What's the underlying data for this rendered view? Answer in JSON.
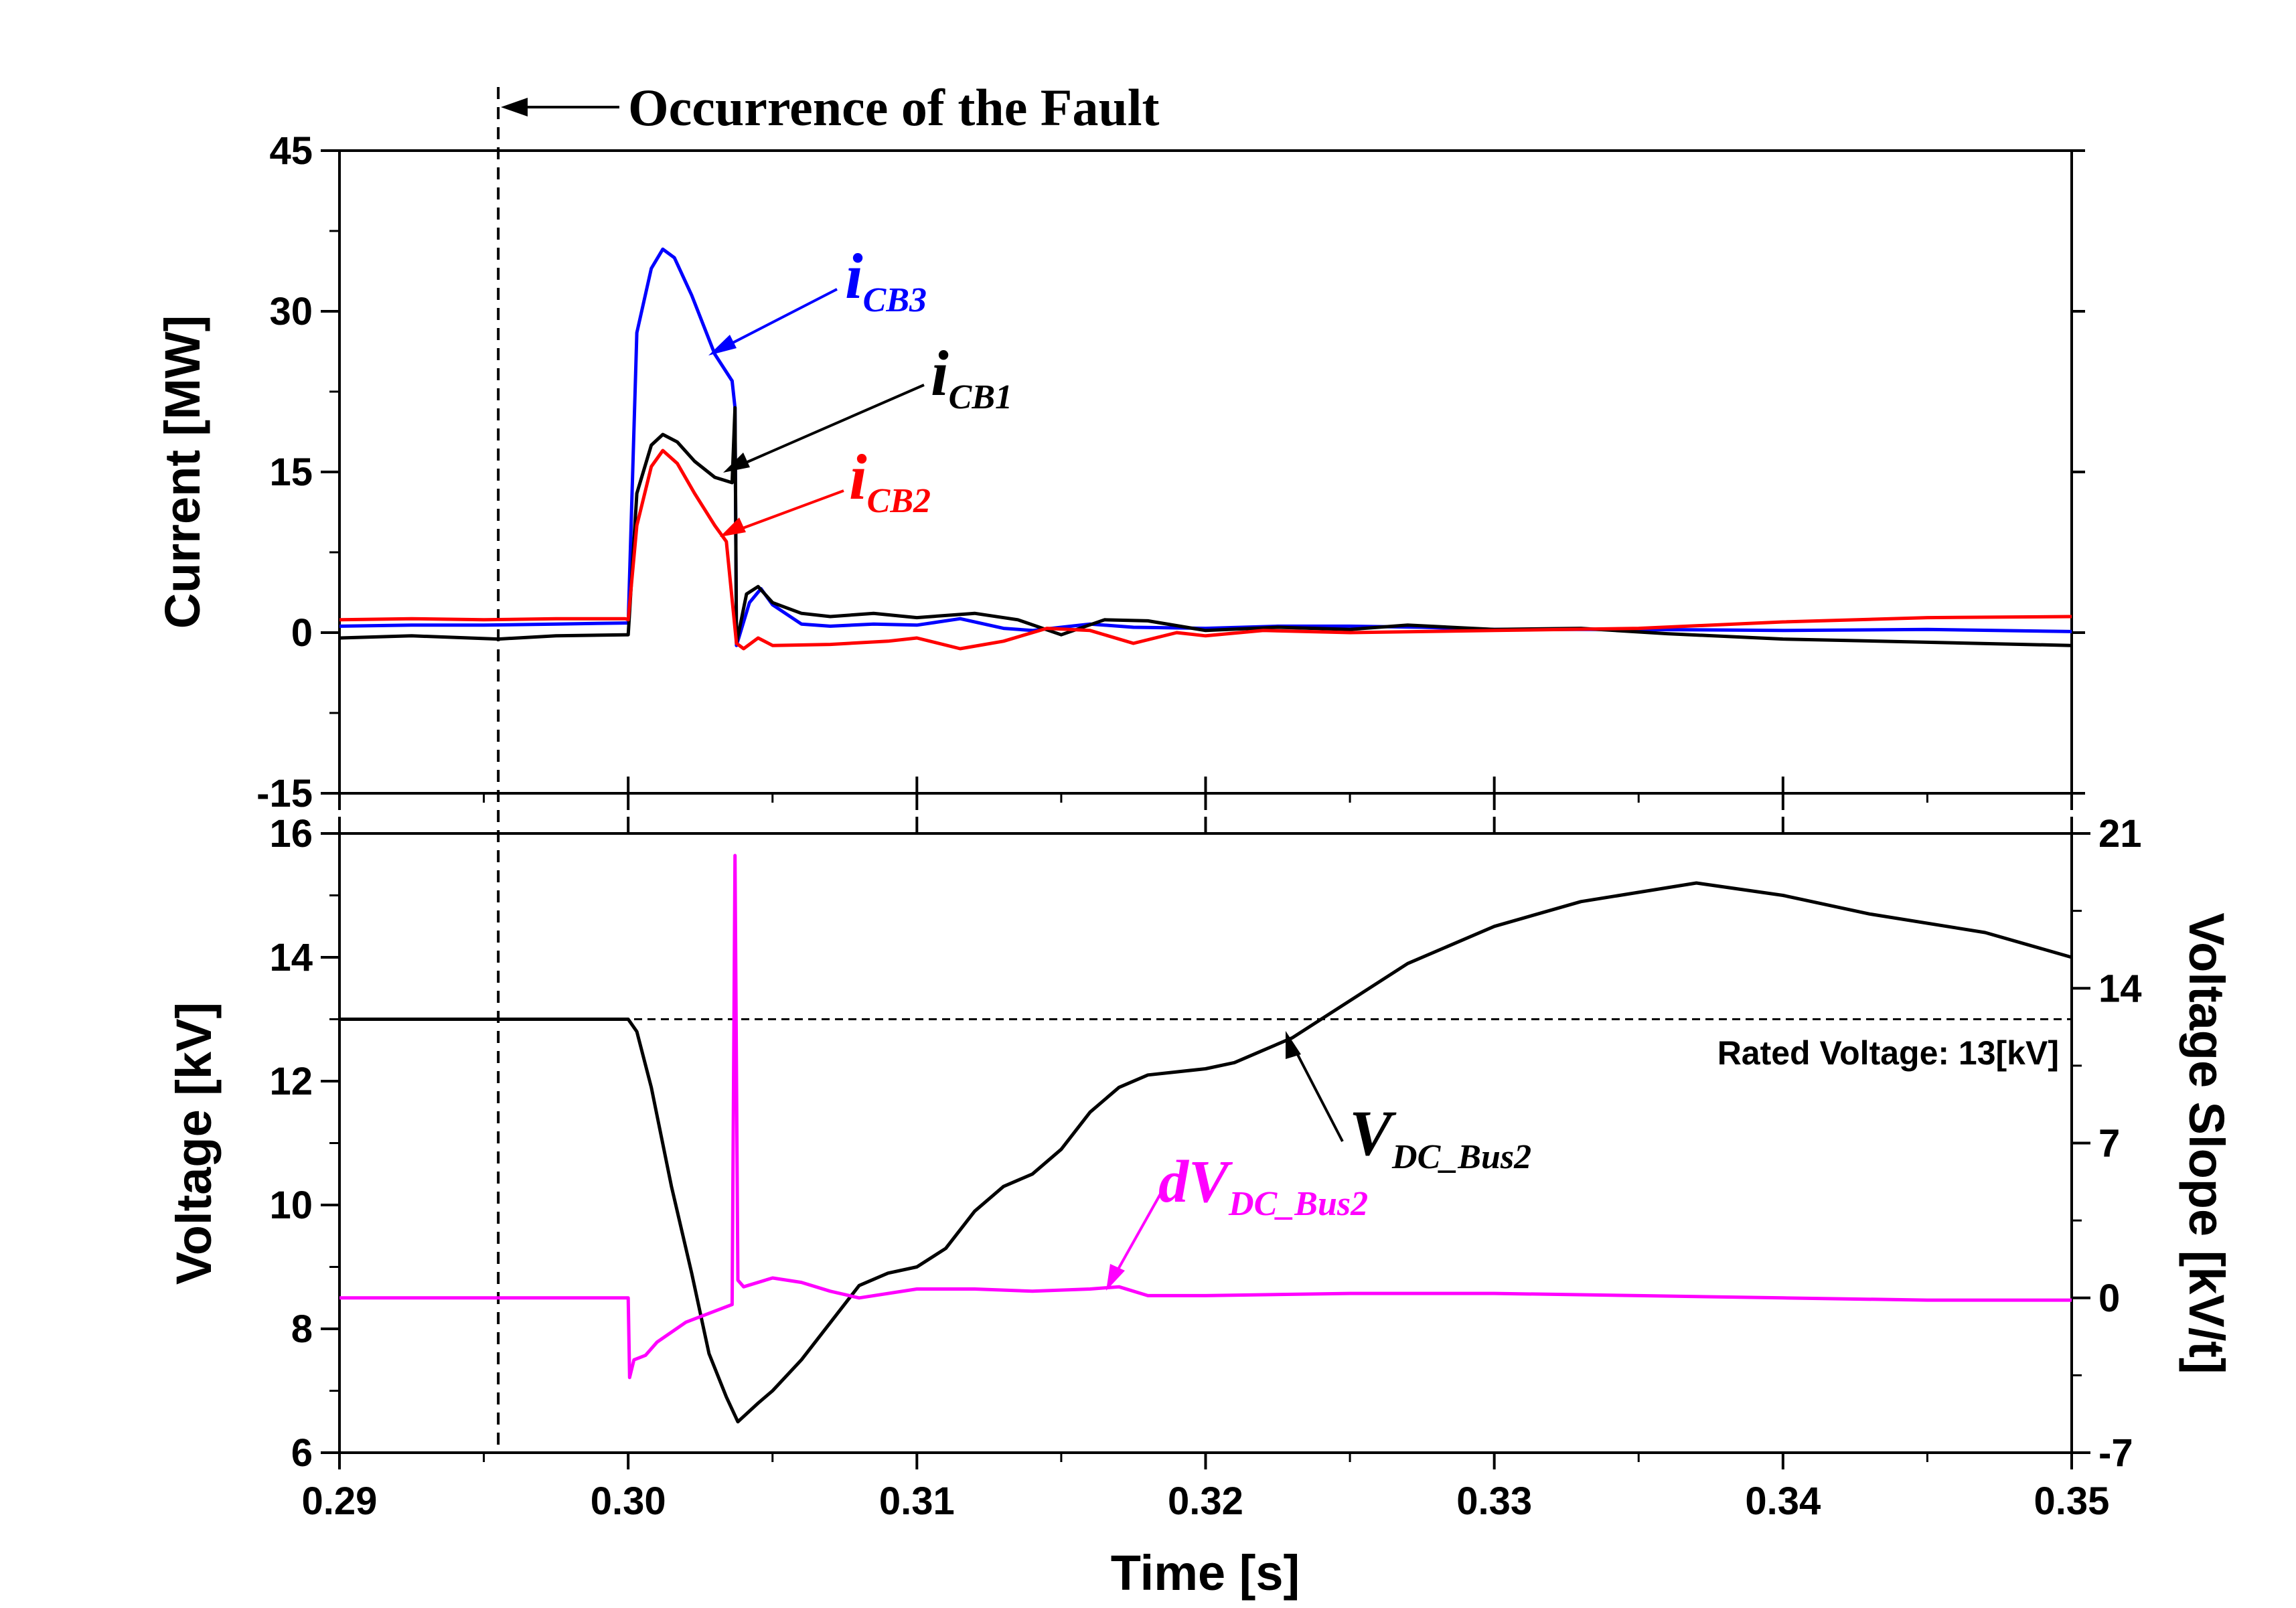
{
  "chart_data": [
    {
      "type": "line",
      "panel": "top",
      "ylabel": "Current [MW]",
      "ylim": [
        -15,
        45
      ],
      "yticks": [
        -15,
        0,
        15,
        30,
        45
      ],
      "grid": false,
      "series": [
        {
          "name": "i_CB3",
          "color": "#0000ff",
          "points": [
            [
              0.29,
              0.6
            ],
            [
              0.2925,
              0.7
            ],
            [
              0.295,
              0.7
            ],
            [
              0.2975,
              0.8
            ],
            [
              0.2999,
              0.9
            ],
            [
              0.3,
              0.9
            ],
            [
              0.3003,
              28
            ],
            [
              0.3008,
              34
            ],
            [
              0.3012,
              35.8
            ],
            [
              0.3016,
              35.0
            ],
            [
              0.3022,
              31.5
            ],
            [
              0.303,
              26
            ],
            [
              0.3036,
              23.5
            ],
            [
              0.3037,
              21
            ],
            [
              0.30375,
              -1.2
            ],
            [
              0.3042,
              2.8
            ],
            [
              0.3046,
              4.1
            ],
            [
              0.305,
              2.6
            ],
            [
              0.306,
              0.8
            ],
            [
              0.307,
              0.6
            ],
            [
              0.3085,
              0.8
            ],
            [
              0.31,
              0.7
            ],
            [
              0.3115,
              1.3
            ],
            [
              0.313,
              0.4
            ],
            [
              0.314,
              0.2
            ],
            [
              0.315,
              0.5
            ],
            [
              0.316,
              0.8
            ],
            [
              0.3175,
              0.5
            ],
            [
              0.32,
              0.4
            ],
            [
              0.3225,
              0.6
            ],
            [
              0.325,
              0.6
            ],
            [
              0.3275,
              0.5
            ],
            [
              0.33,
              0.3
            ],
            [
              0.335,
              0.3
            ],
            [
              0.34,
              0.2
            ],
            [
              0.345,
              0.3
            ],
            [
              0.35,
              0.1
            ]
          ]
        },
        {
          "name": "i_CB1",
          "color": "#000000",
          "points": [
            [
              0.29,
              -0.5
            ],
            [
              0.2925,
              -0.3
            ],
            [
              0.2955,
              -0.6
            ],
            [
              0.2975,
              -0.3
            ],
            [
              0.2999,
              -0.2
            ],
            [
              0.3,
              -0.2
            ],
            [
              0.3003,
              13
            ],
            [
              0.3008,
              17.5
            ],
            [
              0.3012,
              18.5
            ],
            [
              0.3017,
              17.8
            ],
            [
              0.3023,
              16
            ],
            [
              0.303,
              14.5
            ],
            [
              0.3036,
              14.0
            ],
            [
              0.3037,
              21
            ],
            [
              0.30375,
              -1.0
            ],
            [
              0.3041,
              3.6
            ],
            [
              0.3045,
              4.3
            ],
            [
              0.305,
              2.8
            ],
            [
              0.306,
              1.8
            ],
            [
              0.307,
              1.5
            ],
            [
              0.3085,
              1.8
            ],
            [
              0.31,
              1.4
            ],
            [
              0.312,
              1.8
            ],
            [
              0.3135,
              1.2
            ],
            [
              0.315,
              -0.2
            ],
            [
              0.3165,
              1.2
            ],
            [
              0.318,
              1.1
            ],
            [
              0.32,
              0.2
            ],
            [
              0.3225,
              0.5
            ],
            [
              0.325,
              0.3
            ],
            [
              0.327,
              0.7
            ],
            [
              0.33,
              0.3
            ],
            [
              0.333,
              0.4
            ],
            [
              0.336,
              -0.1
            ],
            [
              0.34,
              -0.6
            ],
            [
              0.345,
              -0.9
            ],
            [
              0.35,
              -1.2
            ]
          ]
        },
        {
          "name": "i_CB2",
          "color": "#ff0000",
          "points": [
            [
              0.29,
              1.2
            ],
            [
              0.2925,
              1.3
            ],
            [
              0.295,
              1.2
            ],
            [
              0.2975,
              1.3
            ],
            [
              0.2999,
              1.3
            ],
            [
              0.3,
              1.2
            ],
            [
              0.3003,
              10
            ],
            [
              0.3008,
              15.5
            ],
            [
              0.3012,
              17.0
            ],
            [
              0.3017,
              15.8
            ],
            [
              0.3023,
              13
            ],
            [
              0.303,
              10
            ],
            [
              0.3034,
              8.5
            ],
            [
              0.30375,
              -1.0
            ],
            [
              0.304,
              -1.5
            ],
            [
              0.3045,
              -0.5
            ],
            [
              0.305,
              -1.2
            ],
            [
              0.307,
              -1.1
            ],
            [
              0.309,
              -0.8
            ],
            [
              0.31,
              -0.5
            ],
            [
              0.3115,
              -1.5
            ],
            [
              0.313,
              -0.8
            ],
            [
              0.3145,
              0.4
            ],
            [
              0.316,
              0.2
            ],
            [
              0.3175,
              -1.0
            ],
            [
              0.319,
              0.0
            ],
            [
              0.32,
              -0.3
            ],
            [
              0.322,
              0.2
            ],
            [
              0.325,
              0.0
            ],
            [
              0.33,
              0.2
            ],
            [
              0.335,
              0.4
            ],
            [
              0.34,
              1.0
            ],
            [
              0.345,
              1.4
            ],
            [
              0.35,
              1.5
            ]
          ]
        }
      ]
    },
    {
      "type": "line",
      "panel": "bottom",
      "xlabel": "Time [s]",
      "xlim": [
        0.29,
        0.35
      ],
      "xticks": [
        "0.29",
        "0.30",
        "0.31",
        "0.32",
        "0.33",
        "0.34",
        "0.35"
      ],
      "ylabel_left": "Voltage [kV]",
      "ylim_left": [
        6,
        16
      ],
      "yticks_left": [
        6,
        8,
        10,
        12,
        14,
        16
      ],
      "ylabel_right": "Voltage Slope [kV/t]",
      "ylim_right": [
        -7,
        21
      ],
      "yticks_right": [
        -7,
        0,
        7,
        14,
        21
      ],
      "reference_line": {
        "label": "Rated Voltage: 13[kV]",
        "value": 13
      },
      "grid": false,
      "series": [
        {
          "name": "V_DC_Bus2",
          "axis": "left",
          "color": "#000000",
          "points": [
            [
              0.29,
              13
            ],
            [
              0.295,
              13
            ],
            [
              0.2999,
              13
            ],
            [
              0.3,
              13.0
            ],
            [
              0.3003,
              12.8
            ],
            [
              0.3008,
              11.9
            ],
            [
              0.3015,
              10.3
            ],
            [
              0.3022,
              8.9
            ],
            [
              0.3028,
              7.6
            ],
            [
              0.3034,
              6.9
            ],
            [
              0.3038,
              6.5
            ],
            [
              0.3045,
              6.8
            ],
            [
              0.305,
              7.0
            ],
            [
              0.306,
              7.5
            ],
            [
              0.307,
              8.1
            ],
            [
              0.308,
              8.7
            ],
            [
              0.309,
              8.9
            ],
            [
              0.31,
              9.0
            ],
            [
              0.311,
              9.3
            ],
            [
              0.312,
              9.9
            ],
            [
              0.313,
              10.3
            ],
            [
              0.314,
              10.5
            ],
            [
              0.315,
              10.9
            ],
            [
              0.316,
              11.5
            ],
            [
              0.317,
              11.9
            ],
            [
              0.318,
              12.1
            ],
            [
              0.32,
              12.2
            ],
            [
              0.321,
              12.3
            ],
            [
              0.322,
              12.5
            ],
            [
              0.323,
              12.7
            ],
            [
              0.325,
              13.3
            ],
            [
              0.327,
              13.9
            ],
            [
              0.33,
              14.5
            ],
            [
              0.333,
              14.9
            ],
            [
              0.337,
              15.2
            ],
            [
              0.34,
              15.0
            ],
            [
              0.343,
              14.7
            ],
            [
              0.347,
              14.4
            ],
            [
              0.35,
              14.0
            ]
          ]
        },
        {
          "name": "dV_DC_Bus2",
          "axis": "right",
          "color": "#ff00ff",
          "points": [
            [
              0.29,
              0
            ],
            [
              0.2999,
              0
            ],
            [
              0.3,
              0
            ],
            [
              0.30005,
              -3.6
            ],
            [
              0.3002,
              -2.8
            ],
            [
              0.3006,
              -2.6
            ],
            [
              0.301,
              -2.0
            ],
            [
              0.302,
              -1.1
            ],
            [
              0.303,
              -0.6
            ],
            [
              0.3036,
              -0.3
            ],
            [
              0.3037,
              20.0
            ],
            [
              0.3038,
              0.8
            ],
            [
              0.304,
              0.5
            ],
            [
              0.305,
              0.9
            ],
            [
              0.306,
              0.7
            ],
            [
              0.307,
              0.3
            ],
            [
              0.308,
              0.0
            ],
            [
              0.31,
              0.4
            ],
            [
              0.312,
              0.4
            ],
            [
              0.314,
              0.3
            ],
            [
              0.316,
              0.4
            ],
            [
              0.317,
              0.5
            ],
            [
              0.318,
              0.1
            ],
            [
              0.32,
              0.1
            ],
            [
              0.325,
              0.2
            ],
            [
              0.33,
              0.2
            ],
            [
              0.335,
              0.1
            ],
            [
              0.34,
              0.0
            ],
            [
              0.345,
              -0.1
            ],
            [
              0.35,
              -0.1
            ]
          ]
        }
      ]
    }
  ],
  "annotations": {
    "fault": {
      "text": "Occurrence of the Fault",
      "time": 0.2955
    },
    "i_cb3": {
      "main": "i",
      "sub": "CB3"
    },
    "i_cb1": {
      "main": "i",
      "sub": "CB1"
    },
    "i_cb2": {
      "main": "i",
      "sub": "CB2"
    },
    "v_dc": {
      "main": "V",
      "sub": "DC_Bus2"
    },
    "dv_dc": {
      "main": "dV",
      "sub": "DC_Bus2"
    }
  }
}
